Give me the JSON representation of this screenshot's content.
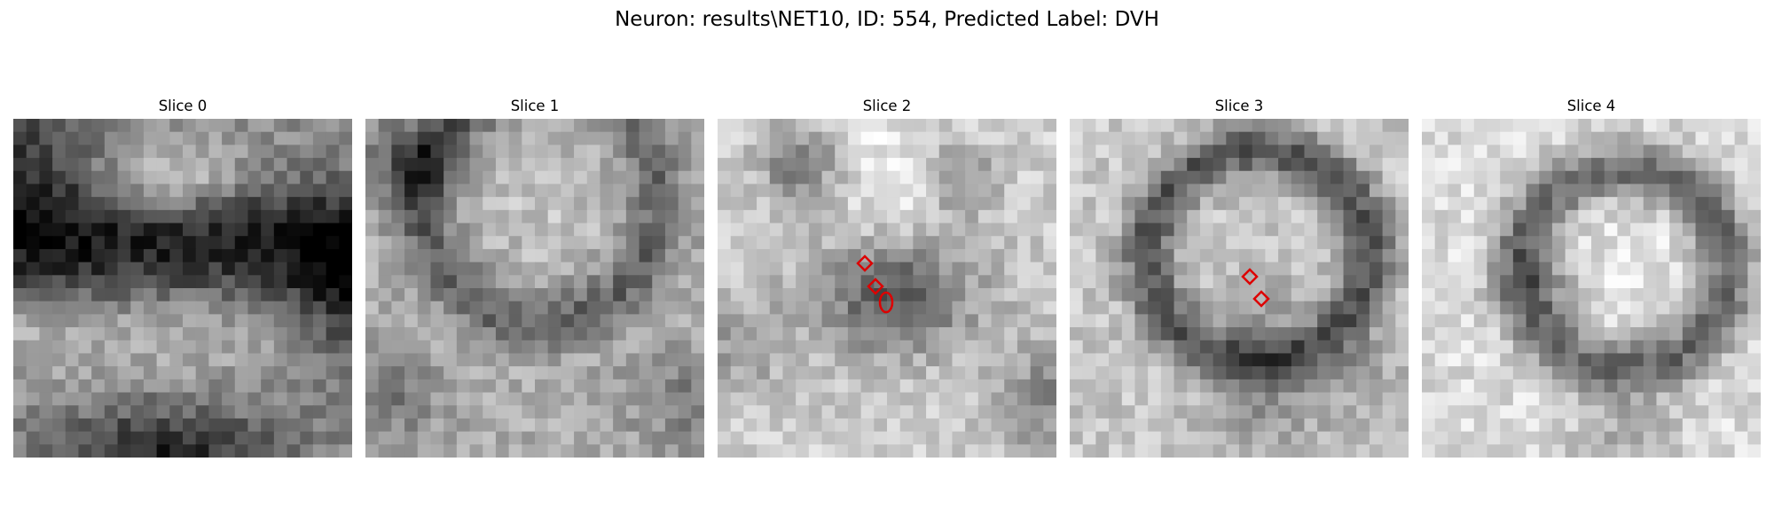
{
  "figure": {
    "title": "Neuron: results\\NET10, ID: 554, Predicted Label: DVH"
  },
  "panels": [
    {
      "title": "Slice 0",
      "kind": "dark-top-ring",
      "markers": []
    },
    {
      "title": "Slice 1",
      "kind": "mid-ring",
      "markers": []
    },
    {
      "title": "Slice 2",
      "kind": "bright-blob",
      "markers": [
        {
          "shape": "diamond",
          "color": "#dd0000"
        },
        {
          "shape": "diamond",
          "color": "#dd0000"
        },
        {
          "shape": "ellipse",
          "color": "#dd0000"
        }
      ]
    },
    {
      "title": "Slice 3",
      "kind": "dark-ring",
      "markers": [
        {
          "shape": "diamond",
          "color": "#dd0000"
        },
        {
          "shape": "diamond",
          "color": "#dd0000"
        }
      ]
    },
    {
      "title": "Slice 4",
      "kind": "light-ring",
      "markers": []
    }
  ],
  "colors": {
    "marker": "#dd0000",
    "background": "#ffffff"
  }
}
